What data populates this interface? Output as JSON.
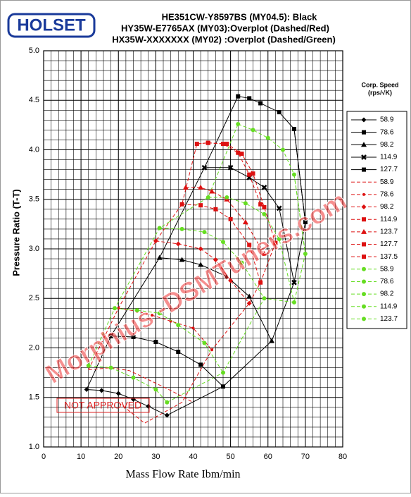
{
  "logo": "HOLSET",
  "stamp": "NOT APPROVED",
  "watermark": "Morphius -DSMTuners.com",
  "chart_data": {
    "type": "line",
    "title_lines": [
      "HE351CW-Y8597BS (MY04.5): Black",
      "HY35W-E7765AX (MY03):Overplot (Dashed/Red)",
      "HX35W-XXXXXXX (MY02) :Overplot (Dashed/Green)"
    ],
    "x_label": "Mass Flow Rate Ibm/min",
    "y_label": "Pressure Ratio (T-T)",
    "legend_title": [
      "Corp. Speed",
      "(rps/√K)"
    ],
    "xlim": [
      0,
      80
    ],
    "ylim": [
      1,
      5
    ],
    "xticks": [
      0,
      10,
      20,
      30,
      40,
      50,
      60,
      70,
      80
    ],
    "yticks": [
      {
        "value": 1,
        "label": "1.0"
      },
      1.5,
      {
        "value": 2,
        "label": "2.0"
      },
      2.5,
      {
        "value": 3,
        "label": "3.0"
      },
      3.5,
      {
        "value": 4,
        "label": "4.0"
      },
      4.5,
      {
        "value": 5,
        "label": "5.0"
      }
    ],
    "minor_grid": {
      "x": 2,
      "y": 0.1
    },
    "series": [
      {
        "name": "58.9",
        "color": "#000000",
        "dash": false,
        "marker": "diamond",
        "x": [
          11.5,
          15.5,
          20,
          24,
          28,
          33
        ],
        "values": [
          1.58,
          1.57,
          1.54,
          1.48,
          1.41,
          1.32
        ]
      },
      {
        "name": "78.6",
        "color": "#000000",
        "dash": false,
        "marker": "square",
        "x": [
          18,
          24,
          30,
          36,
          42,
          48
        ],
        "values": [
          2.12,
          2.11,
          2.06,
          1.96,
          1.83,
          1.61
        ]
      },
      {
        "name": "98.2",
        "color": "#000000",
        "dash": false,
        "marker": "triangle",
        "x": [
          31,
          37,
          42,
          49,
          55,
          61
        ],
        "values": [
          2.91,
          2.89,
          2.84,
          2.72,
          2.52,
          2.07
        ]
      },
      {
        "name": "114.9",
        "color": "#000000",
        "dash": false,
        "marker": "x",
        "x": [
          43,
          50,
          55,
          59,
          63,
          67
        ],
        "values": [
          3.82,
          3.82,
          3.72,
          3.62,
          3.41,
          2.66
        ]
      },
      {
        "name": "127.7",
        "color": "#000000",
        "dash": false,
        "marker": "square",
        "x": [
          52,
          55,
          58,
          63,
          67,
          70
        ],
        "values": [
          4.54,
          4.52,
          4.47,
          4.38,
          4.21,
          3.27
        ]
      },
      {
        "name": "58.9",
        "color": "#dd1111",
        "dash": true,
        "marker": "none",
        "x": [
          12,
          18,
          23,
          28,
          34,
          40
        ],
        "values": [
          1.78,
          1.8,
          1.77,
          1.68,
          1.57,
          1.45
        ]
      },
      {
        "name": "78.6",
        "color": "#dd1111",
        "dash": true,
        "marker": "dot",
        "x": [
          20,
          25,
          29,
          34,
          40,
          45
        ],
        "values": [
          2.4,
          2.37,
          2.33,
          2.27,
          2.2,
          1.98
        ]
      },
      {
        "name": "98.2",
        "color": "#dd1111",
        "dash": true,
        "marker": "diamond",
        "x": [
          30,
          36,
          42,
          46,
          50,
          55
        ],
        "values": [
          3.08,
          3.05,
          3.0,
          2.89,
          2.68,
          2.45
        ]
      },
      {
        "name": "114.9",
        "color": "#dd1111",
        "dash": true,
        "marker": "square",
        "x": [
          37,
          42,
          46,
          50,
          55,
          58
        ],
        "values": [
          3.45,
          3.44,
          3.4,
          3.3,
          3.04,
          2.66
        ]
      },
      {
        "name": "123.7",
        "color": "#dd1111",
        "dash": true,
        "marker": "triangle",
        "x": [
          38,
          42,
          45,
          49,
          54,
          59
        ],
        "values": [
          3.62,
          3.62,
          3.58,
          3.5,
          3.27,
          2.95
        ]
      },
      {
        "name": "127.7",
        "color": "#dd1111",
        "dash": true,
        "marker": "square",
        "x": [
          41,
          44,
          48,
          52,
          55,
          58
        ],
        "values": [
          4.06,
          4.07,
          4.06,
          3.97,
          3.75,
          3.45
        ]
      },
      {
        "name": "137.5",
        "color": "#dd1111",
        "dash": true,
        "marker": "square",
        "x": [
          44,
          49,
          53,
          56,
          59,
          62
        ],
        "values": [
          4.07,
          4.06,
          3.96,
          3.76,
          3.42,
          3.06
        ]
      },
      {
        "name": "58.9",
        "color": "#66dd22",
        "dash": true,
        "marker": "circle",
        "x": [
          12,
          18,
          24,
          30,
          33
        ],
        "values": [
          1.82,
          1.8,
          1.7,
          1.58,
          1.45
        ]
      },
      {
        "name": "78.6",
        "color": "#66dd22",
        "dash": true,
        "marker": "circle",
        "x": [
          19,
          25,
          31,
          36,
          43,
          48
        ],
        "values": [
          2.4,
          2.38,
          2.35,
          2.23,
          2.05,
          1.75
        ]
      },
      {
        "name": "98.2",
        "color": "#66dd22",
        "dash": true,
        "marker": "circle",
        "x": [
          31,
          37,
          43,
          48,
          53,
          59
        ],
        "values": [
          3.21,
          3.2,
          3.17,
          3.07,
          2.86,
          2.5
        ]
      },
      {
        "name": "114.9",
        "color": "#66dd22",
        "dash": true,
        "marker": "circle",
        "x": [
          44,
          49,
          54,
          59,
          63,
          67
        ],
        "values": [
          3.52,
          3.52,
          3.46,
          3.35,
          3.1,
          2.46
        ]
      },
      {
        "name": "123.7",
        "color": "#66dd22",
        "dash": true,
        "marker": "circle",
        "x": [
          52,
          56,
          60,
          64,
          67,
          70
        ],
        "values": [
          4.26,
          4.2,
          4.12,
          4.0,
          3.75,
          2.95
        ]
      }
    ],
    "boundaries": [
      {
        "color": "#000000",
        "dash": false,
        "x": [
          11.5,
          18,
          31,
          43,
          52
        ],
        "values": [
          1.58,
          2.12,
          2.91,
          3.82,
          4.54
        ]
      },
      {
        "color": "#000000",
        "dash": false,
        "x": [
          33,
          48,
          61,
          67,
          70,
          67
        ],
        "values": [
          1.32,
          1.61,
          2.07,
          2.66,
          3.27,
          4.21
        ]
      },
      {
        "color": "#dd1111",
        "dash": true,
        "x": [
          12,
          20,
          30,
          37,
          41,
          44
        ],
        "values": [
          1.78,
          2.4,
          3.08,
          3.45,
          4.06,
          4.07
        ]
      },
      {
        "color": "#dd1111",
        "dash": true,
        "x": [
          20,
          27,
          37,
          45,
          55,
          58,
          62
        ],
        "values": [
          1.45,
          1.24,
          1.45,
          1.98,
          2.45,
          2.66,
          3.06
        ]
      },
      {
        "color": "#66dd22",
        "dash": true,
        "x": [
          12,
          19,
          31,
          44,
          52
        ],
        "values": [
          1.82,
          2.4,
          3.21,
          3.52,
          4.26
        ]
      },
      {
        "color": "#66dd22",
        "dash": true,
        "x": [
          33,
          48,
          59,
          67,
          70,
          67
        ],
        "values": [
          1.45,
          1.75,
          2.5,
          2.46,
          2.95,
          3.75
        ]
      }
    ]
  }
}
